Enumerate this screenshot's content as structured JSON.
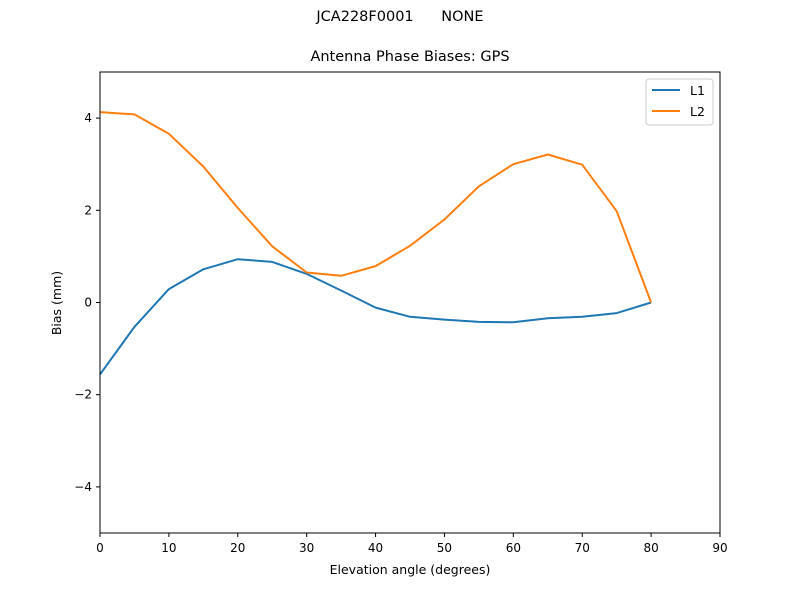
{
  "figure": {
    "suptitle": "JCA228F0001      NONE"
  },
  "chart_data": {
    "type": "line",
    "suptitle": "JCA228F0001      NONE",
    "title": "Antenna Phase Biases: GPS",
    "xlabel": "Elevation angle (degrees)",
    "ylabel": "Bias (mm)",
    "xlim": [
      0,
      90
    ],
    "ylim": [
      -5,
      5
    ],
    "xticks": [
      0,
      10,
      20,
      30,
      40,
      50,
      60,
      70,
      80,
      90
    ],
    "yticks": [
      -4,
      -2,
      0,
      2,
      4
    ],
    "ytick_labels": [
      "−4",
      "−2",
      "0",
      "2",
      "4"
    ],
    "grid": false,
    "legend_position": "upper right",
    "x": [
      0,
      5,
      10,
      15,
      20,
      25,
      30,
      35,
      40,
      45,
      50,
      55,
      60,
      65,
      70,
      75,
      80
    ],
    "series": [
      {
        "name": "L1",
        "color": "#1f77b4",
        "values": [
          -1.56,
          -0.53,
          0.29,
          0.72,
          0.94,
          0.88,
          0.62,
          0.26,
          -0.11,
          -0.31,
          -0.37,
          -0.42,
          -0.43,
          -0.34,
          -0.31,
          -0.23,
          0.0
        ]
      },
      {
        "name": "L2",
        "color": "#ff7f0e",
        "values": [
          4.13,
          4.08,
          3.66,
          2.95,
          2.05,
          1.22,
          0.65,
          0.58,
          0.79,
          1.23,
          1.8,
          2.52,
          3.0,
          3.21,
          2.99,
          1.98,
          0.0
        ]
      }
    ]
  }
}
